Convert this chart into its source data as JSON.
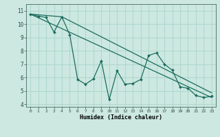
{
  "xlabel": "Humidex (Indice chaleur)",
  "bg_color": "#cce8e0",
  "grid_color": "#b0d8ce",
  "line_color": "#1a6b5e",
  "xlim": [
    -0.5,
    23.5
  ],
  "ylim": [
    3.8,
    11.5
  ],
  "xticks": [
    0,
    1,
    2,
    3,
    4,
    5,
    6,
    7,
    8,
    9,
    10,
    11,
    12,
    13,
    14,
    15,
    16,
    17,
    18,
    19,
    20,
    21,
    22,
    23
  ],
  "yticks": [
    4,
    5,
    6,
    7,
    8,
    9,
    10,
    11
  ],
  "data_line": {
    "x": [
      0,
      1,
      2,
      3,
      4,
      5,
      6,
      7,
      8,
      9,
      10,
      11,
      12,
      13,
      14,
      15,
      16,
      17,
      18,
      19,
      20,
      21,
      22,
      23
    ],
    "y": [
      10.75,
      10.6,
      10.5,
      9.4,
      10.55,
      9.2,
      5.85,
      5.5,
      5.9,
      7.25,
      4.35,
      6.5,
      5.5,
      5.55,
      5.85,
      7.65,
      7.85,
      7.0,
      6.55,
      5.3,
      5.2,
      4.65,
      4.5,
      4.6
    ]
  },
  "line1": {
    "x": [
      0,
      23
    ],
    "y": [
      10.75,
      4.5
    ]
  },
  "line2": {
    "x": [
      0,
      4,
      23
    ],
    "y": [
      10.75,
      10.55,
      4.85
    ]
  }
}
